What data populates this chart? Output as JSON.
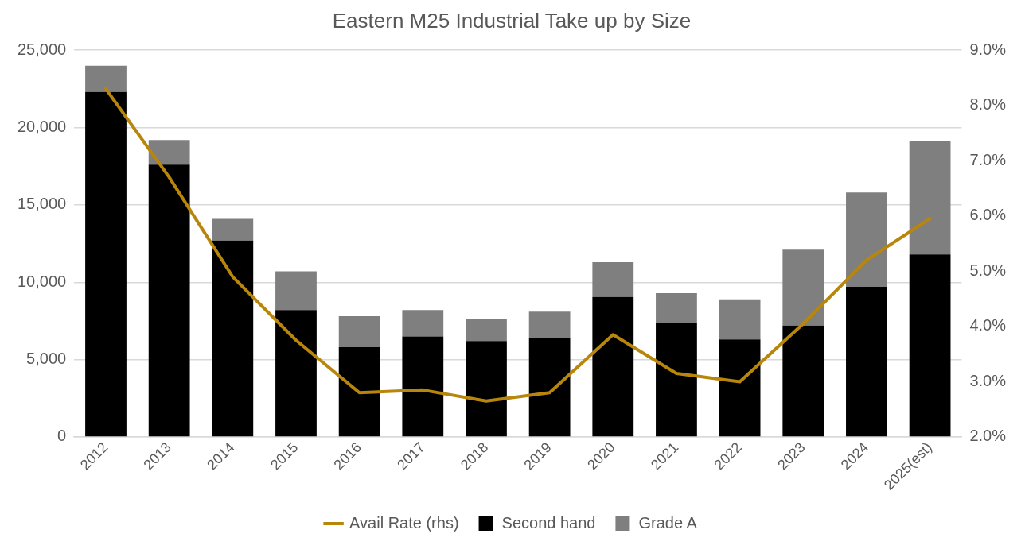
{
  "chart_data": {
    "type": "bar",
    "title": "Eastern M25 Industrial Take up by Size",
    "stacked": true,
    "legend": "bottom",
    "grid": "y",
    "categories": [
      "2012",
      "2013",
      "2014",
      "2015",
      "2016",
      "2017",
      "2018",
      "2019",
      "2020",
      "2021",
      "2022",
      "2023",
      "2024",
      "2025(est)"
    ],
    "series": [
      {
        "name": "Second hand",
        "color": "#000000",
        "values": [
          22300,
          17600,
          12700,
          8200,
          5800,
          6500,
          6200,
          6400,
          9050,
          7350,
          6300,
          7200,
          9700,
          11800
        ]
      },
      {
        "name": "Grade A",
        "color": "#7f7f7f",
        "values": [
          1700,
          1600,
          1400,
          2500,
          2000,
          1700,
          1400,
          1700,
          2250,
          1950,
          2600,
          4900,
          6100,
          7300
        ]
      },
      {
        "name": "Avail Rate (rhs)",
        "type": "line",
        "axis": "y2",
        "color": "#b8860b",
        "values": [
          8.3,
          6.7,
          4.9,
          3.75,
          2.8,
          2.85,
          2.65,
          2.8,
          3.85,
          3.15,
          3.0,
          4.05,
          5.2,
          5.95
        ]
      }
    ],
    "ylim": [
      0,
      25000
    ],
    "yticks": [
      {
        "value": 0,
        "label": "0"
      },
      {
        "value": 5000,
        "label": "5,000"
      },
      {
        "value": 10000,
        "label": "10,000"
      },
      {
        "value": 15000,
        "label": "15,000"
      },
      {
        "value": 20000,
        "label": "20,000"
      },
      {
        "value": 25000,
        "label": "25,000"
      }
    ],
    "y2lim": [
      2,
      9
    ],
    "y2ticks": [
      {
        "value": 2,
        "label": "2.0%"
      },
      {
        "value": 3,
        "label": "3.0%"
      },
      {
        "value": 4,
        "label": "4.0%"
      },
      {
        "value": 5,
        "label": "5.0%"
      },
      {
        "value": 6,
        "label": "6.0%"
      },
      {
        "value": 7,
        "label": "7.0%"
      },
      {
        "value": 8,
        "label": "8.0%"
      },
      {
        "value": 9,
        "label": "9.0%"
      }
    ]
  }
}
